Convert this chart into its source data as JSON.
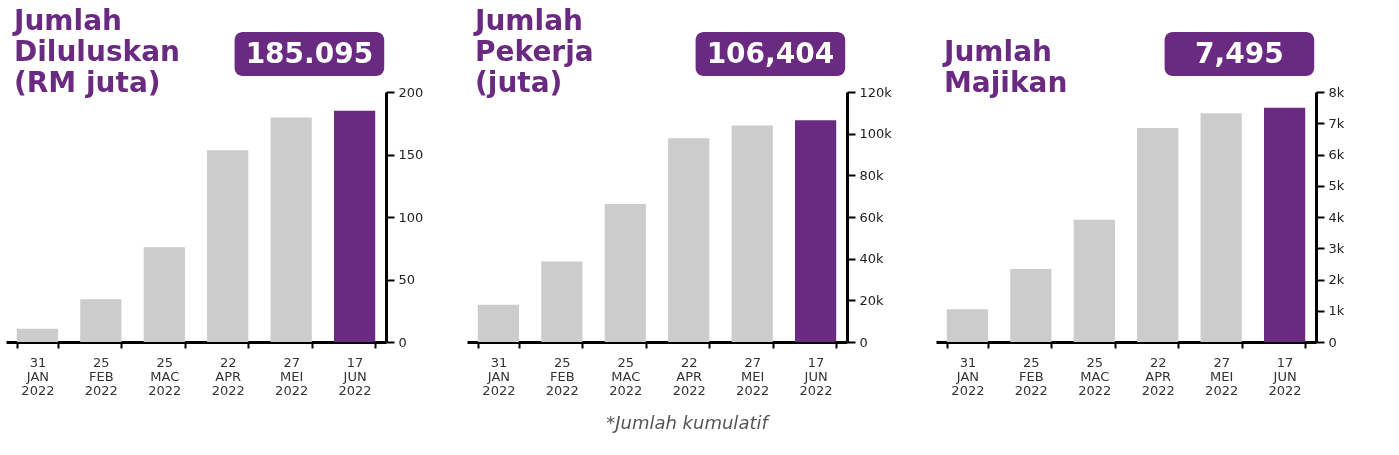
{
  "chart_data": [
    {
      "type": "bar",
      "title": "Jumlah\nDiluluskan\n(RM juta)",
      "categories": [
        "31 JAN 2022",
        "25 FEB 2022",
        "25 MAC 2022",
        "22 APR 2022",
        "27 MEI 2022",
        "17 JUN 2022"
      ],
      "values": [
        10.7,
        34.3,
        75.9,
        153.4,
        179.6,
        185.095
      ],
      "colors": [
        "#cccccc",
        "#cccccc",
        "#cccccc",
        "#cccccc",
        "#cccccc",
        "#6b2a82"
      ],
      "value_labels": [
        null,
        null,
        null,
        null,
        null,
        "185.095"
      ],
      "ylim": [
        0,
        200
      ],
      "yticks": [
        0,
        50,
        100,
        150,
        200
      ],
      "grid": false
    },
    {
      "type": "bar",
      "title": "Jumlah\nPekerja\n(juta)",
      "categories": [
        "31 JAN 2022",
        "25 FEB 2022",
        "25 MAC 2022",
        "22 APR 2022",
        "27 MEI 2022",
        "17 JUN 2022"
      ],
      "values": [
        17900,
        38600,
        66300,
        97800,
        103900,
        106404
      ],
      "colors": [
        "#cccccc",
        "#cccccc",
        "#cccccc",
        "#cccccc",
        "#cccccc",
        "#6b2a82"
      ],
      "value_labels": [
        null,
        null,
        null,
        null,
        null,
        "106,404"
      ],
      "ylim": [
        0,
        120000
      ],
      "yticks": [
        0,
        {
          "value": 20000,
          "label": "20k"
        },
        {
          "value": 40000,
          "label": "40k"
        },
        {
          "value": 60000,
          "label": "60k"
        },
        {
          "value": 80000,
          "label": "80k"
        },
        {
          "value": 100000,
          "label": "100k"
        },
        {
          "value": 120000,
          "label": "120k"
        }
      ],
      "grid": false,
      "annotations": [
        "*Jumlah kumulatif"
      ]
    },
    {
      "type": "bar",
      "title": "Jumlah\nMajikan",
      "categories": [
        "31 JAN 2022",
        "25 FEB 2022",
        "25 MAC 2022",
        "22 APR 2022",
        "27 MEI 2022",
        "17 JUN 2022"
      ],
      "values": [
        1050,
        2340,
        3910,
        6850,
        7320,
        7495
      ],
      "colors": [
        "#cccccc",
        "#cccccc",
        "#cccccc",
        "#cccccc",
        "#cccccc",
        "#6b2a82"
      ],
      "value_labels": [
        null,
        null,
        null,
        null,
        null,
        "7,495"
      ],
      "ylim": [
        0,
        8000
      ],
      "yticks": [
        0,
        {
          "value": 1000,
          "label": "1k"
        },
        {
          "value": 2000,
          "label": "2k"
        },
        {
          "value": 3000,
          "label": "3k"
        },
        {
          "value": 4000,
          "label": "4k"
        },
        {
          "value": 5000,
          "label": "5k"
        },
        {
          "value": 6000,
          "label": "6k"
        },
        {
          "value": 7000,
          "label": "7k"
        },
        {
          "value": 8000,
          "label": "8k"
        }
      ],
      "grid": false
    }
  ]
}
